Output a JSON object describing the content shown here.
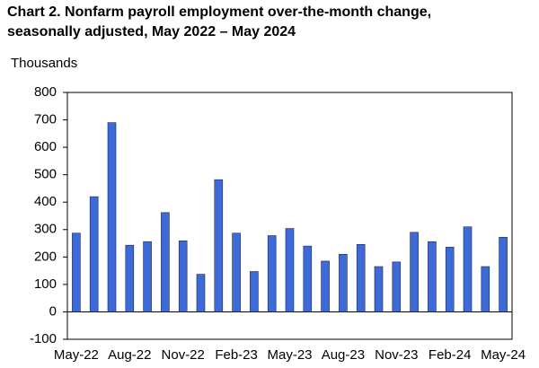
{
  "chart_data": {
    "type": "bar",
    "title": [
      "Chart 2. Nonfarm payroll employment over-the-month change,",
      "seasonally adjusted, May 2022 – May 2024"
    ],
    "y_label": "Thousands",
    "categories": [
      "May-22",
      null,
      null,
      "Aug-22",
      null,
      null,
      "Nov-22",
      null,
      null,
      "Feb-23",
      null,
      null,
      "May-23",
      null,
      null,
      "Aug-23",
      null,
      null,
      "Nov-23",
      null,
      null,
      "Feb-24",
      null,
      null,
      "May-24"
    ],
    "values": [
      287,
      420,
      690,
      243,
      256,
      362,
      259,
      137,
      482,
      287,
      147,
      278,
      304,
      240,
      185,
      210,
      246,
      165,
      182,
      290,
      256,
      236,
      310,
      165,
      272
    ],
    "color": "#3d6ad6",
    "ylim": [
      -100,
      800
    ],
    "yticks": [
      -100,
      0,
      100,
      200,
      300,
      400,
      500,
      600,
      700,
      800
    ],
    "grid": false
  }
}
